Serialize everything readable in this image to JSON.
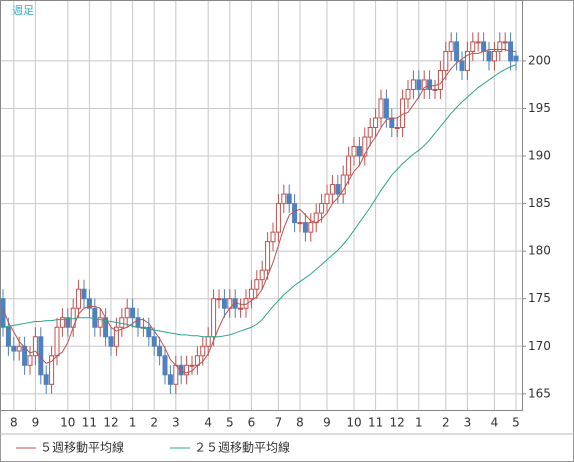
{
  "chart_data": {
    "type": "candlestick",
    "title": "週足",
    "open": [
      175,
      172,
      170,
      169.5,
      170,
      168,
      169,
      171,
      167,
      166,
      169,
      172,
      173,
      172,
      174,
      176,
      175,
      174,
      172,
      173,
      171,
      170,
      172,
      173,
      174,
      173,
      172,
      172,
      171,
      170,
      169,
      167,
      166,
      168,
      167,
      168,
      168,
      169,
      170,
      171,
      175,
      175,
      174,
      175,
      174,
      174,
      175,
      176,
      177,
      178,
      181,
      182,
      185,
      186,
      185,
      183,
      183,
      182,
      183,
      184,
      185,
      186,
      187,
      186,
      188,
      190,
      191,
      190,
      192,
      193,
      194,
      196,
      194,
      193,
      193,
      196,
      197,
      198,
      197,
      198,
      197,
      197,
      199,
      201,
      202,
      200,
      199,
      201,
      202,
      202,
      201,
      200,
      201,
      202,
      202,
      200.5
    ],
    "high": [
      176,
      173,
      171,
      171,
      171,
      170,
      172,
      172,
      168,
      170,
      173,
      174,
      174,
      175,
      177,
      177,
      176,
      175,
      174,
      174,
      172,
      173,
      174,
      175,
      175,
      174,
      173,
      173,
      172,
      171,
      170,
      168,
      169,
      169,
      169,
      169,
      170,
      171,
      172,
      176,
      176,
      176,
      176,
      176,
      175,
      176,
      177,
      178,
      179,
      182,
      183,
      186,
      187,
      187,
      186,
      184,
      184,
      184,
      185,
      186,
      187,
      188,
      188,
      189,
      191,
      192,
      192,
      193,
      194,
      195,
      197,
      197,
      195,
      194,
      197,
      198,
      199,
      199,
      199,
      199,
      198,
      200,
      202,
      203,
      203,
      201,
      202,
      203,
      203,
      203,
      202,
      202,
      203,
      203,
      203,
      201
    ],
    "low": [
      171,
      169,
      168.5,
      168.5,
      167,
      167,
      168,
      166,
      165,
      165,
      168,
      171,
      171,
      171,
      173,
      174,
      173,
      171,
      171,
      170,
      169,
      169,
      171,
      172,
      172,
      171,
      171,
      170,
      169,
      168,
      166,
      165,
      165,
      166,
      166,
      167,
      167,
      168,
      169,
      170,
      174,
      173,
      173,
      173,
      173,
      173,
      174,
      175,
      176,
      177,
      180,
      181,
      184,
      184,
      182,
      182,
      181,
      181,
      182,
      183,
      184,
      185,
      185,
      185,
      187,
      189,
      189,
      189,
      191,
      192,
      193,
      193,
      192,
      192,
      192,
      195,
      196,
      196,
      196,
      196,
      196,
      196,
      198,
      200,
      199,
      198,
      198,
      200,
      201,
      200,
      199,
      199,
      200,
      201,
      199,
      199
    ],
    "close": [
      172,
      170,
      169.5,
      170,
      168,
      169,
      171,
      167,
      166,
      169,
      172,
      173,
      172,
      174,
      176,
      175,
      174,
      172,
      173,
      171,
      170,
      172,
      173,
      174,
      173,
      172,
      172,
      171,
      170,
      169,
      167,
      166,
      168,
      167,
      168,
      168,
      169,
      170,
      171,
      175,
      175,
      174,
      175,
      174,
      174,
      175,
      176,
      177,
      178,
      181,
      182,
      185,
      186,
      185,
      183,
      183,
      182,
      183,
      184,
      185,
      186,
      187,
      186,
      188,
      190,
      191,
      190,
      192,
      193,
      194,
      196,
      194,
      193,
      193,
      196,
      197,
      198,
      197,
      198,
      197,
      197,
      199,
      201,
      202,
      200,
      199,
      201,
      202,
      202,
      201,
      200,
      201,
      202,
      202,
      200,
      200
    ],
    "up_color": "#c0504d",
    "down_color": "#4f81bd",
    "series": [
      {
        "name": "５週移動平均線",
        "color": "#c0504d",
        "values": [
          174,
          172.5,
          171.5,
          170.5,
          169.9,
          169.3,
          169.5,
          168.8,
          168.2,
          168.4,
          169,
          169.4,
          170.4,
          172,
          173.4,
          174,
          174.2,
          174.2,
          174,
          173,
          172,
          171.6,
          171.8,
          172,
          172.4,
          172.8,
          172.8,
          172.4,
          171.6,
          170.8,
          169.8,
          168.6,
          168,
          167.4,
          167.2,
          167.4,
          168,
          168.4,
          169.2,
          170.6,
          172,
          173.2,
          174,
          174.6,
          174.4,
          174.4,
          174.8,
          175.2,
          176,
          177.4,
          178.8,
          180.6,
          182.4,
          183.8,
          184.2,
          184.4,
          183.8,
          183.2,
          183,
          183.4,
          184,
          185,
          185.6,
          186.4,
          187.4,
          188.4,
          189,
          190.2,
          191.2,
          192,
          193,
          193.8,
          194,
          194,
          194.4,
          194.6,
          195.4,
          196.2,
          197.2,
          197.4,
          197.4,
          197.6,
          198.4,
          199.2,
          199.8,
          200.2,
          200.6,
          200.8,
          200.8,
          201,
          201.2,
          201.2,
          201.2,
          201.2,
          201,
          201
        ]
      },
      {
        "name": "２５週移動平均線",
        "color": "#2ca58d",
        "values": [
          172,
          172.1,
          172.2,
          172.3,
          172.4,
          172.5,
          172.6,
          172.6,
          172.7,
          172.7,
          172.8,
          172.8,
          172.9,
          172.9,
          173,
          173,
          173,
          172.9,
          172.8,
          172.7,
          172.6,
          172.5,
          172.4,
          172.3,
          172.1,
          172,
          171.9,
          171.8,
          171.7,
          171.6,
          171.5,
          171.4,
          171.3,
          171.2,
          171.2,
          171.1,
          171.1,
          171,
          171,
          171,
          171,
          171.1,
          171.2,
          171.4,
          171.6,
          171.8,
          172,
          172.3,
          172.8,
          173.5,
          174.2,
          174.8,
          175.4,
          175.9,
          176.4,
          176.8,
          177.2,
          177.6,
          178.1,
          178.6,
          179.1,
          179.6,
          180.1,
          180.7,
          181.4,
          182.2,
          183,
          183.8,
          184.6,
          185.5,
          186.4,
          187.2,
          188,
          188.6,
          189.2,
          189.7,
          190.2,
          190.6,
          191.1,
          191.7,
          192.4,
          193.1,
          193.8,
          194.5,
          195.1,
          195.7,
          196.2,
          196.7,
          197.2,
          197.6,
          198,
          198.4,
          198.8,
          199.1,
          199.4,
          199.6
        ]
      }
    ],
    "xticks": [
      {
        "value": 2,
        "label": "8"
      },
      {
        "value": 6,
        "label": "9"
      },
      {
        "value": 12,
        "label": "10"
      },
      {
        "value": 16,
        "label": "11"
      },
      {
        "value": 20,
        "label": "12"
      },
      {
        "value": 24,
        "label": "1"
      },
      {
        "value": 28,
        "label": "2"
      },
      {
        "value": 32,
        "label": "3"
      },
      {
        "value": 38,
        "label": "4"
      },
      {
        "value": 42,
        "label": "5"
      },
      {
        "value": 46,
        "label": "6"
      },
      {
        "value": 51,
        "label": "7"
      },
      {
        "value": 55,
        "label": "8"
      },
      {
        "value": 60,
        "label": "9"
      },
      {
        "value": 65,
        "label": "10"
      },
      {
        "value": 69,
        "label": "11"
      },
      {
        "value": 73,
        "label": "12"
      },
      {
        "value": 77,
        "label": "1"
      },
      {
        "value": 82,
        "label": "2"
      },
      {
        "value": 86,
        "label": "3"
      },
      {
        "value": 91,
        "label": "4"
      },
      {
        "value": 95,
        "label": "5"
      }
    ],
    "ylim": [
      163.3,
      206.3
    ],
    "yticks": [
      165,
      170,
      175,
      180,
      185,
      190,
      195,
      200
    ],
    "grid": true
  }
}
